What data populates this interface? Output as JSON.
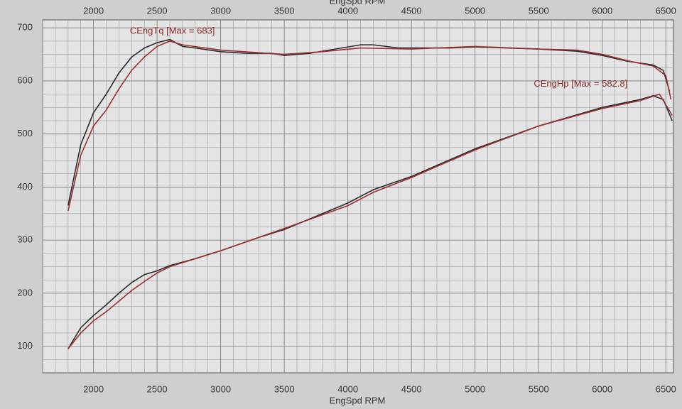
{
  "chart_data": {
    "type": "line",
    "x_label": "EngSpd RPM",
    "xlim": [
      1600,
      6560
    ],
    "ylim": [
      50,
      715
    ],
    "xticks": [
      2000,
      2500,
      3000,
      3500,
      4000,
      4500,
      5000,
      5500,
      6000,
      6500
    ],
    "yticks": [
      100,
      200,
      300,
      400,
      500,
      600,
      700
    ],
    "grid": true,
    "annotations": [
      {
        "text": "CEngTq [Max = 683]",
        "x": 2620,
        "y": 683,
        "color": "#8b2a2a"
      },
      {
        "text": "CEngHp [Max = 582.8]",
        "x": 5830,
        "y": 582.8,
        "color": "#8b2a2a"
      }
    ],
    "series": [
      {
        "color": "#2b2b2b",
        "x": [
          1800,
          1900,
          2000,
          2100,
          2200,
          2300,
          2400,
          2500,
          2600,
          2700,
          2800,
          3000,
          3200,
          3400,
          3500,
          3700,
          3900,
          4100,
          4200,
          4400,
          4800,
          5000,
          5500,
          5800,
          6000,
          6200,
          6400,
          6480,
          6530
        ],
        "values": [
          365,
          480,
          540,
          575,
          615,
          645,
          662,
          672,
          678,
          665,
          662,
          655,
          652,
          652,
          648,
          652,
          660,
          668,
          668,
          662,
          662,
          664,
          660,
          656,
          648,
          637,
          630,
          620,
          580
        ]
      },
      {
        "color": "#9c3030",
        "x": [
          1800,
          1900,
          2000,
          2100,
          2200,
          2300,
          2400,
          2500,
          2600,
          2700,
          3000,
          3500,
          3800,
          4100,
          4500,
          5000,
          5500,
          5800,
          6000,
          6200,
          6400,
          6500,
          6540
        ],
        "values": [
          355,
          460,
          515,
          545,
          585,
          620,
          645,
          665,
          675,
          668,
          658,
          650,
          655,
          662,
          660,
          665,
          660,
          658,
          650,
          638,
          628,
          610,
          565
        ]
      },
      {
        "color": "#2b2b2b",
        "x": [
          1800,
          1900,
          2000,
          2100,
          2200,
          2300,
          2400,
          2500,
          2600,
          2800,
          3000,
          3300,
          3500,
          4000,
          4200,
          4500,
          5000,
          5500,
          6000,
          6300,
          6400,
          6480,
          6550
        ],
        "values": [
          95,
          135,
          158,
          178,
          200,
          220,
          235,
          242,
          252,
          265,
          280,
          305,
          320,
          370,
          395,
          420,
          472,
          515,
          550,
          565,
          572,
          565,
          525
        ]
      },
      {
        "color": "#9c3030",
        "x": [
          1800,
          1900,
          2000,
          2100,
          2200,
          2300,
          2400,
          2500,
          2600,
          2800,
          3000,
          3500,
          4000,
          4200,
          4500,
          5000,
          5500,
          6000,
          6300,
          6450,
          6550
        ],
        "values": [
          95,
          125,
          148,
          165,
          185,
          205,
          222,
          238,
          250,
          265,
          280,
          322,
          365,
          390,
          418,
          470,
          515,
          548,
          563,
          575,
          535
        ]
      }
    ]
  }
}
